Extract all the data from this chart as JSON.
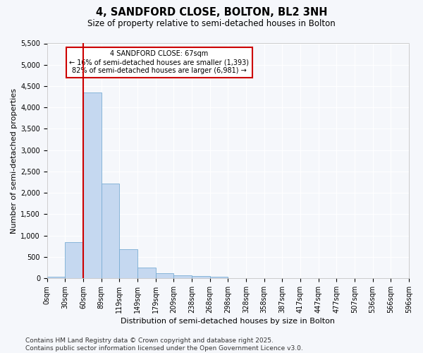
{
  "title_line1": "4, SANDFORD CLOSE, BOLTON, BL2 3NH",
  "title_line2": "Size of property relative to semi-detached houses in Bolton",
  "xlabel": "Distribution of semi-detached houses by size in Bolton",
  "ylabel": "Number of semi-detached properties",
  "bar_color": "#c5d8f0",
  "bar_edge_color": "#7aadd4",
  "bins": [
    "0sqm",
    "30sqm",
    "60sqm",
    "89sqm",
    "119sqm",
    "149sqm",
    "179sqm",
    "209sqm",
    "238sqm",
    "268sqm",
    "298sqm",
    "328sqm",
    "358sqm",
    "387sqm",
    "417sqm",
    "447sqm",
    "477sqm",
    "507sqm",
    "536sqm",
    "566sqm",
    "596sqm"
  ],
  "values": [
    30,
    850,
    4350,
    2220,
    680,
    250,
    120,
    65,
    55,
    30,
    0,
    0,
    0,
    0,
    0,
    0,
    0,
    0,
    0,
    0
  ],
  "ylim": [
    0,
    5500
  ],
  "yticks": [
    0,
    500,
    1000,
    1500,
    2000,
    2500,
    3000,
    3500,
    4000,
    4500,
    5000,
    5500
  ],
  "vline_x_index": 2,
  "annotation_title": "4 SANDFORD CLOSE: 67sqm",
  "annotation_line1": "← 16% of semi-detached houses are smaller (1,393)",
  "annotation_line2": "82% of semi-detached houses are larger (6,981) →",
  "annotation_box_color": "#ffffff",
  "annotation_edge_color": "#cc0000",
  "vline_color": "#cc0000",
  "footer_line1": "Contains HM Land Registry data © Crown copyright and database right 2025.",
  "footer_line2": "Contains public sector information licensed under the Open Government Licence v3.0.",
  "background_color": "#f5f7fb",
  "grid_color": "#ffffff",
  "title_fontsize": 10.5,
  "subtitle_fontsize": 8.5,
  "axis_label_fontsize": 8,
  "tick_fontsize": 7,
  "annotation_fontsize": 7,
  "footer_fontsize": 6.5
}
